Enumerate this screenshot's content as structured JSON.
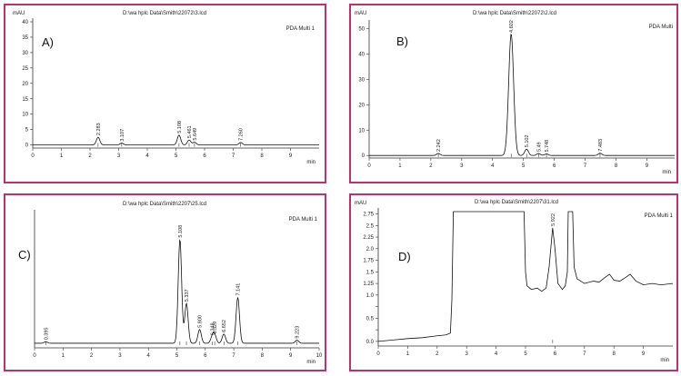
{
  "panels": [
    {
      "id": "pA",
      "letter": "A)",
      "header": "D:\\wa hplc Data\\Smith\\22072\\3.lcd",
      "unit": "mAU",
      "legend": "PDA Multi 1",
      "xunit": "min"
    },
    {
      "id": "pB",
      "letter": "B)",
      "header": "D:\\wa hplc Data\\Smith\\22072\\2.lcd",
      "unit": "mAU",
      "legend": "PDA Multi",
      "xunit": "min"
    },
    {
      "id": "pC",
      "letter": "C)",
      "header": "D:\\wa hplc Data\\Smith\\2207\\25.lcd",
      "unit": "mAU",
      "legend": "PDA Multi 1",
      "xunit": "min"
    },
    {
      "id": "pD",
      "letter": "D)",
      "header": "D:\\wa hplc Data\\Smith\\2207\\31.lcd",
      "unit": "mAU",
      "legend": "PDA Multi 1",
      "xunit": "min"
    }
  ],
  "chart_data": [
    {
      "type": "line",
      "panel": "A)",
      "xlim": [
        0,
        10
      ],
      "ylim": [
        -1,
        40
      ],
      "xticks": [
        0,
        1,
        2,
        3,
        4,
        5,
        6,
        7,
        8,
        9
      ],
      "yticks": [
        0,
        5,
        10,
        15,
        20,
        25,
        30,
        35,
        40
      ],
      "peaks": [
        {
          "t": 2.283,
          "h": 2.5,
          "label": "2.283"
        },
        {
          "t": 3.107,
          "h": 0.6,
          "label": "3.107"
        },
        {
          "t": 5.108,
          "h": 3.2,
          "label": "5.108"
        },
        {
          "t": 5.461,
          "h": 1.6,
          "label": "5.461"
        },
        {
          "t": 5.649,
          "h": 0.9,
          "label": "5.649"
        },
        {
          "t": 7.26,
          "h": 0.8,
          "label": "7.260"
        }
      ]
    },
    {
      "type": "line",
      "panel": "B)",
      "xlim": [
        0,
        9.9
      ],
      "ylim": [
        -1,
        52
      ],
      "xticks": [
        0,
        1,
        2,
        3,
        4,
        5,
        6,
        7,
        8,
        9
      ],
      "yticks": [
        0,
        10,
        20,
        30,
        40,
        50
      ],
      "peaks": [
        {
          "t": 2.242,
          "h": 0.8,
          "label": "2.242"
        },
        {
          "t": 4.602,
          "h": 48,
          "label": "4.602"
        },
        {
          "t": 5.102,
          "h": 2.5,
          "label": "5.102"
        },
        {
          "t": 5.49,
          "h": 0.8,
          "label": "5.49"
        },
        {
          "t": 5.748,
          "h": 0.6,
          "label": "5.748"
        },
        {
          "t": 7.483,
          "h": 0.9,
          "label": "7.483"
        }
      ]
    },
    {
      "type": "line",
      "panel": "C)",
      "xlim": [
        0,
        10
      ],
      "ylim": [
        -0.3,
        8.5
      ],
      "xticks": [
        0,
        1,
        2,
        3,
        4,
        5,
        6,
        7,
        8,
        9,
        10
      ],
      "yticks": [],
      "peaks": [
        {
          "t": 0.395,
          "h": 0.1,
          "label": "0.395"
        },
        {
          "t": 5.108,
          "h": 6.8,
          "label": "5.108"
        },
        {
          "t": 5.337,
          "h": 2.6,
          "label": "5.337"
        },
        {
          "t": 5.8,
          "h": 0.9,
          "label": "5.800"
        },
        {
          "t": 6.248,
          "h": 0.4,
          "label": "6.248"
        },
        {
          "t": 6.329,
          "h": 0.5,
          "label": "6.329"
        },
        {
          "t": 6.652,
          "h": 0.6,
          "label": "6.652"
        },
        {
          "t": 7.141,
          "h": 3.0,
          "label": "7.141"
        },
        {
          "t": 9.223,
          "h": 0.2,
          "label": "9.223"
        }
      ]
    },
    {
      "type": "line",
      "panel": "D)",
      "xlim": [
        0,
        10
      ],
      "ylim": [
        -0.1,
        2.8
      ],
      "xticks": [
        0,
        1,
        2,
        3,
        4,
        5,
        6,
        7,
        8,
        9
      ],
      "yticks": [
        0.0,
        0.25,
        0.5,
        0.75,
        1.0,
        1.25,
        1.5,
        1.75,
        2.0,
        2.25,
        2.5,
        2.75
      ],
      "ytick_labels": [
        "0.0",
        "",
        "0.5",
        "",
        "1.0",
        "1.25",
        "1.5",
        "1.75",
        "2.0",
        "2.25",
        "2.5",
        "2.75"
      ],
      "peaks": [
        {
          "t": 5.922,
          "h": 2.45,
          "label": "5.922"
        }
      ],
      "points": [
        [
          0.0,
          0.0
        ],
        [
          0.5,
          0.03
        ],
        [
          1.0,
          0.06
        ],
        [
          1.5,
          0.08
        ],
        [
          2.0,
          0.12
        ],
        [
          2.3,
          0.14
        ],
        [
          2.45,
          0.18
        ],
        [
          2.5,
          0.9
        ],
        [
          2.55,
          2.8
        ],
        [
          4.95,
          2.8
        ],
        [
          5.0,
          1.5
        ],
        [
          5.05,
          1.2
        ],
        [
          5.2,
          1.12
        ],
        [
          5.4,
          1.15
        ],
        [
          5.55,
          1.08
        ],
        [
          5.7,
          1.15
        ],
        [
          5.8,
          1.6
        ],
        [
          5.92,
          2.45
        ],
        [
          6.0,
          2.0
        ],
        [
          6.1,
          1.25
        ],
        [
          6.25,
          1.12
        ],
        [
          6.35,
          1.2
        ],
        [
          6.42,
          1.5
        ],
        [
          6.45,
          2.8
        ],
        [
          6.6,
          2.8
        ],
        [
          6.65,
          1.6
        ],
        [
          6.75,
          1.35
        ],
        [
          7.0,
          1.25
        ],
        [
          7.3,
          1.3
        ],
        [
          7.5,
          1.28
        ],
        [
          7.7,
          1.38
        ],
        [
          7.85,
          1.45
        ],
        [
          8.0,
          1.32
        ],
        [
          8.2,
          1.3
        ],
        [
          8.4,
          1.38
        ],
        [
          8.55,
          1.45
        ],
        [
          8.75,
          1.3
        ],
        [
          9.0,
          1.22
        ],
        [
          9.3,
          1.25
        ],
        [
          9.6,
          1.22
        ],
        [
          10.0,
          1.25
        ]
      ]
    }
  ]
}
